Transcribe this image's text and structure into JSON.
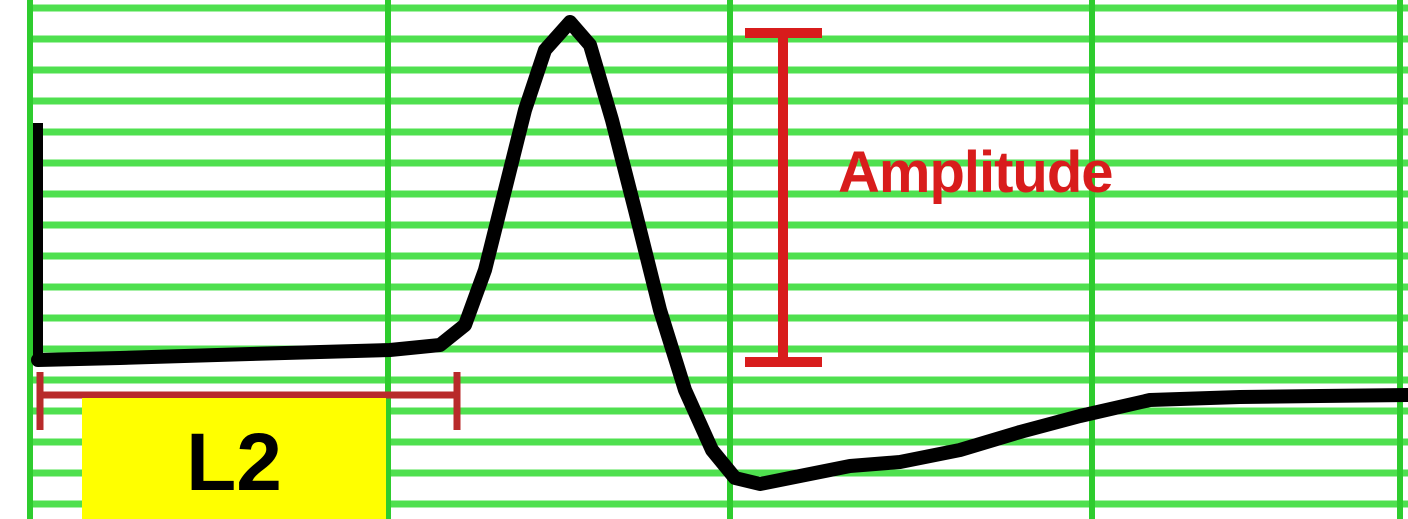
{
  "diagram": {
    "amplitude_label": "Amplitude",
    "lead_label": "L2",
    "colors": {
      "grid_line": "#4fe04f",
      "grid_major": "#2ecc2e",
      "waveform": "#000000",
      "marker": "#d81c1c",
      "lead_box": "#ffff00"
    }
  }
}
